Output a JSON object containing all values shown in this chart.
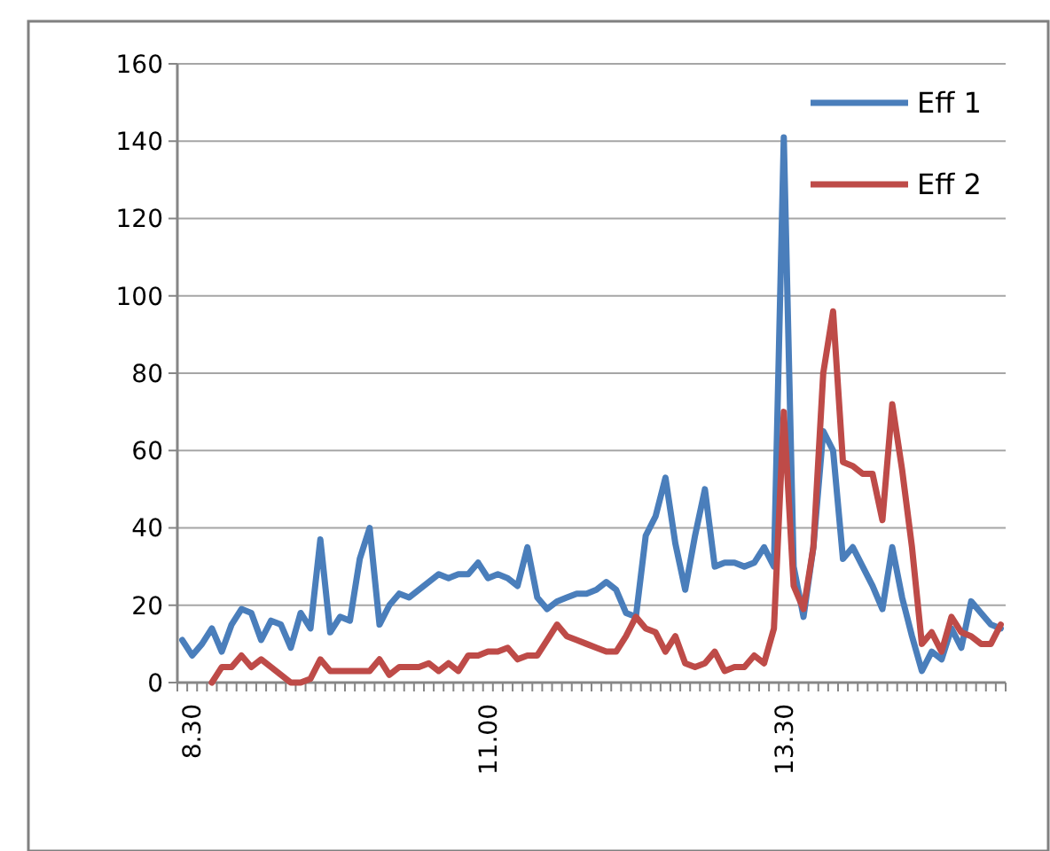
{
  "chart_data": {
    "type": "line",
    "categories": [
      null,
      "8.30",
      null,
      null,
      null,
      null,
      null,
      null,
      null,
      null,
      null,
      null,
      null,
      null,
      null,
      null,
      null,
      null,
      null,
      null,
      null,
      null,
      null,
      null,
      null,
      null,
      null,
      null,
      null,
      null,
      null,
      "11.00",
      null,
      null,
      null,
      null,
      null,
      null,
      null,
      null,
      null,
      null,
      null,
      null,
      null,
      null,
      null,
      null,
      null,
      null,
      null,
      null,
      null,
      null,
      null,
      null,
      null,
      null,
      null,
      null,
      null,
      "13.30",
      null,
      null,
      null,
      null,
      null,
      null,
      null,
      null,
      null,
      null,
      null,
      null,
      null,
      null,
      null,
      null,
      null,
      null,
      null,
      null,
      null,
      null
    ],
    "series": [
      {
        "name": "Eff 1",
        "color": "#4a7ebb",
        "values": [
          11,
          7,
          10,
          14,
          8,
          15,
          19,
          18,
          11,
          16,
          15,
          9,
          18,
          14,
          37,
          13,
          17,
          16,
          32,
          40,
          15,
          20,
          23,
          22,
          24,
          26,
          28,
          27,
          28,
          28,
          31,
          27,
          28,
          27,
          25,
          35,
          22,
          19,
          21,
          22,
          23,
          23,
          24,
          26,
          24,
          18,
          17,
          38,
          43,
          53,
          36,
          24,
          38,
          50,
          30,
          31,
          31,
          30,
          31,
          35,
          30,
          141,
          30,
          17,
          35,
          65,
          60,
          32,
          35,
          30,
          25,
          19,
          35,
          22,
          12,
          3,
          8,
          6,
          14,
          9,
          21,
          18,
          15,
          14
        ]
      },
      {
        "name": "Eff 2",
        "color": "#be4b48",
        "values": [
          null,
          null,
          null,
          0,
          4,
          4,
          7,
          4,
          6,
          4,
          2,
          0,
          0,
          1,
          6,
          3,
          3,
          3,
          3,
          3,
          6,
          2,
          4,
          4,
          4,
          5,
          3,
          5,
          3,
          7,
          7,
          8,
          8,
          9,
          6,
          7,
          7,
          11,
          15,
          12,
          11,
          10,
          9,
          8,
          8,
          12,
          17,
          14,
          13,
          8,
          12,
          5,
          4,
          5,
          8,
          3,
          4,
          4,
          7,
          5,
          14,
          70,
          25,
          19,
          35,
          80,
          96,
          57,
          56,
          54,
          54,
          42,
          72,
          55,
          35,
          10,
          13,
          8,
          17,
          13,
          12,
          10,
          10,
          15
        ]
      }
    ],
    "ylim": [
      0,
      160
    ],
    "yticks": [
      0,
      20,
      40,
      60,
      80,
      100,
      120,
      140,
      160
    ],
    "grid": "y",
    "legend": "top right",
    "line_style": "solid",
    "marker": "none"
  }
}
